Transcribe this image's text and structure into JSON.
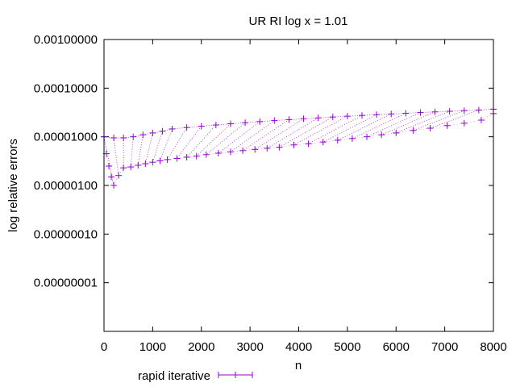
{
  "chart_data": {
    "type": "scatter",
    "title": "UR RI log x = 1.01",
    "xlabel": "n",
    "ylabel": "log relative errors",
    "xlim": [
      0,
      8000
    ],
    "ylim": [
      1e-09,
      0.001
    ],
    "yscale": "log",
    "grid": false,
    "legend_position": "bottom-left",
    "x_ticks": [
      {
        "value": 0,
        "label": "0"
      },
      {
        "value": 1000,
        "label": "1000"
      },
      {
        "value": 2000,
        "label": "2000"
      },
      {
        "value": 3000,
        "label": "3000"
      },
      {
        "value": 4000,
        "label": "4000"
      },
      {
        "value": 5000,
        "label": "5000"
      },
      {
        "value": 6000,
        "label": "6000"
      },
      {
        "value": 7000,
        "label": "7000"
      },
      {
        "value": 8000,
        "label": "8000"
      }
    ],
    "y_ticks": [
      {
        "value": 0.001,
        "label": "0.00100000"
      },
      {
        "value": 0.0001,
        "label": "0.00010000"
      },
      {
        "value": 1e-05,
        "label": "0.00001000"
      },
      {
        "value": 1e-06,
        "label": "0.00000100"
      },
      {
        "value": 1e-07,
        "label": "0.00000010"
      },
      {
        "value": 1e-08,
        "label": "0.00000001"
      }
    ],
    "series": [
      {
        "name": "rapid iterative",
        "color": "#9400d3",
        "marker": "plus",
        "x": [
          0,
          50,
          100,
          150,
          200,
          300,
          400,
          550,
          700,
          850,
          1000,
          1150,
          1300,
          1500,
          1700,
          1900,
          2100,
          2350,
          2600,
          2850,
          3100,
          3350,
          3600,
          3900,
          4200,
          4500,
          4800,
          5100,
          5400,
          5700,
          6000,
          6350,
          6700,
          7050,
          7400,
          7750,
          8000
        ],
        "y": [
          1e-05,
          4.5e-06,
          2.5e-06,
          1.5e-06,
          1e-06,
          1.6e-06,
          2.3e-06,
          2.4e-06,
          2.6e-06,
          2.8e-06,
          3e-06,
          3.2e-06,
          3.4e-06,
          3.6e-06,
          3.8e-06,
          4e-06,
          4.3e-06,
          4.6e-06,
          4.9e-06,
          5.2e-06,
          5.5e-06,
          5.8e-06,
          6.1e-06,
          6.8e-06,
          7.2e-06,
          7.8e-06,
          8.5e-06,
          9.2e-06,
          1e-05,
          1.1e-05,
          1.2e-05,
          1.35e-05,
          1.5e-05,
          1.7e-05,
          1.9e-05,
          2.2e-05,
          3e-05
        ],
        "upper_envelope_x": [
          0,
          200,
          400,
          600,
          800,
          1000,
          1200,
          1400,
          1700,
          2000,
          2300,
          2600,
          2900,
          3200,
          3500,
          3800,
          4100,
          4400,
          4700,
          5000,
          5300,
          5600,
          5900,
          6200,
          6500,
          6800,
          7100,
          7400,
          7700,
          8000
        ],
        "upper_envelope_y": [
          1e-05,
          9.5e-06,
          9.5e-06,
          1e-05,
          1.1e-05,
          1.2e-05,
          1.3e-05,
          1.45e-05,
          1.55e-05,
          1.65e-05,
          1.75e-05,
          1.85e-05,
          1.95e-05,
          2.05e-05,
          2.15e-05,
          2.25e-05,
          2.35e-05,
          2.45e-05,
          2.55e-05,
          2.65e-05,
          2.75e-05,
          2.85e-05,
          2.95e-05,
          3.05e-05,
          3.15e-05,
          3.25e-05,
          3.35e-05,
          3.45e-05,
          3.55e-05,
          3.7e-05
        ]
      }
    ]
  }
}
